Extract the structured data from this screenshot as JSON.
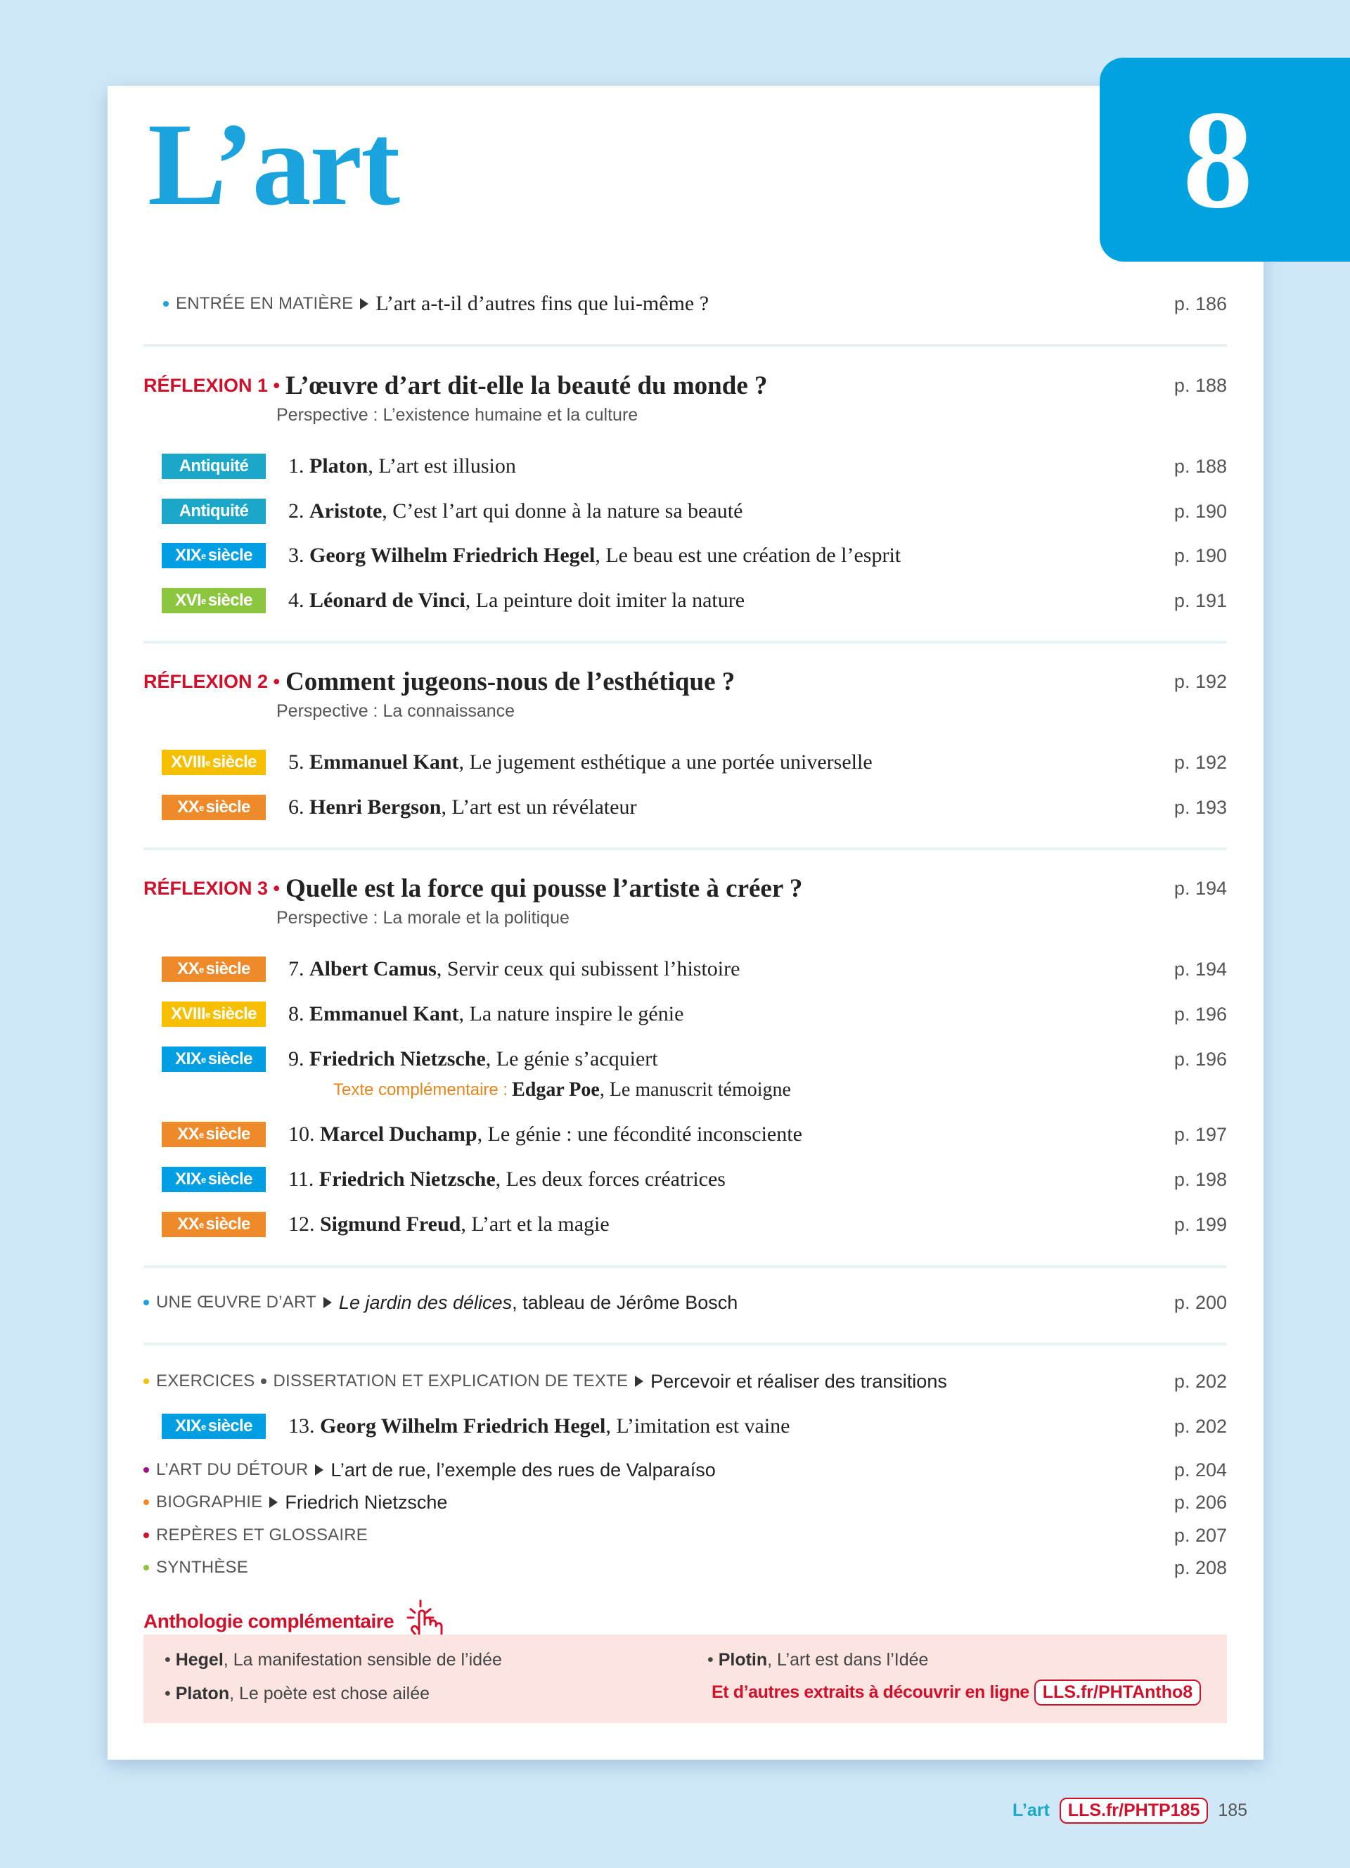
{
  "header": {
    "title": "L’art",
    "chapter_number": "8"
  },
  "entree": {
    "label": "ENTRÉE EN MATIÈRE",
    "text": "L’art a-t-il d’autres fins que lui-même ?",
    "page": "p. 186",
    "bullet_color": "#1aa3dc"
  },
  "period_colors": {
    "antiquite": "#1ba7c9",
    "xix": "#009fe3",
    "xvi": "#8cc63f",
    "xviii": "#f6bf00",
    "xx": "#ef8a2a"
  },
  "reflexions": [
    {
      "label": "RÉFLEXION 1 •",
      "title": "L’œuvre d’art dit-elle la beauté du monde ?",
      "perspective": "Perspective : L’existence humaine et la culture",
      "page": "p. 188",
      "texts": [
        {
          "period": "Antiquité",
          "suffix": "",
          "word": "",
          "color": "antiquite",
          "number": "1.",
          "author": "Platon",
          "title": "L’art est illusion",
          "page": "p. 188"
        },
        {
          "period": "Antiquité",
          "suffix": "",
          "word": "",
          "color": "antiquite",
          "number": "2.",
          "author": "Aristote",
          "title": "C’est l’art qui donne à la nature sa beauté",
          "page": "p. 190"
        },
        {
          "period": "XIX",
          "suffix": "e",
          "word": "siècle",
          "color": "xix",
          "number": "3.",
          "author": "Georg Wilhelm Friedrich Hegel",
          "title": "Le beau est une création de l’esprit",
          "page": "p. 190"
        },
        {
          "period": "XVI",
          "suffix": "e",
          "word": "siècle",
          "color": "xvi",
          "number": "4.",
          "author": "Léonard de Vinci",
          "title": "La peinture doit imiter la nature",
          "page": "p. 191"
        }
      ]
    },
    {
      "label": "RÉFLEXION 2 •",
      "title": "Comment jugeons-nous de l’esthétique ?",
      "perspective": "Perspective : La connaissance",
      "page": "p. 192",
      "texts": [
        {
          "period": "XVIII",
          "suffix": "e",
          "word": "siècle",
          "color": "xviii",
          "number": "5.",
          "author": "Emmanuel Kant",
          "title": "Le jugement esthétique a une portée universelle",
          "page": "p. 192"
        },
        {
          "period": "XX",
          "suffix": "e",
          "word": "siècle",
          "color": "xx",
          "number": "6.",
          "author": "Henri Bergson",
          "title": "L’art est un révélateur",
          "page": "p. 193"
        }
      ]
    },
    {
      "label": "RÉFLEXION 3 •",
      "title": "Quelle est la force qui pousse l’artiste à créer ?",
      "perspective": "Perspective : La morale et la politique",
      "page": "p. 194",
      "texts": [
        {
          "period": "XX",
          "suffix": "e",
          "word": "siècle",
          "color": "xx",
          "number": "7.",
          "author": "Albert Camus",
          "title": "Servir ceux qui subissent l’histoire",
          "page": "p. 194"
        },
        {
          "period": "XVIII",
          "suffix": "e",
          "word": "siècle",
          "color": "xviii",
          "number": "8.",
          "author": "Emmanuel Kant",
          "title": "La nature inspire le génie",
          "page": "p. 196"
        },
        {
          "period": "XIX",
          "suffix": "e",
          "word": "siècle",
          "color": "xix",
          "number": "9.",
          "author": "Friedrich Nietzsche",
          "title": "Le génie s’acquiert",
          "page": "p. 196",
          "complement": {
            "label": "Texte complémentaire :",
            "author": "Edgar Poe",
            "title": "Le manuscrit témoigne"
          }
        },
        {
          "period": "XX",
          "suffix": "e",
          "word": "siècle",
          "color": "xx",
          "number": "10.",
          "author": "Marcel Duchamp",
          "title": "Le génie : une fécondité inconsciente",
          "page": "p. 197"
        },
        {
          "period": "XIX",
          "suffix": "e",
          "word": "siècle",
          "color": "xix",
          "number": "11.",
          "author": "Friedrich Nietzsche",
          "title": "Les deux forces créatrices",
          "page": "p. 198"
        },
        {
          "period": "XX",
          "suffix": "e",
          "word": "siècle",
          "color": "xx",
          "number": "12.",
          "author": "Sigmund Freud",
          "title": "L’art et la magie",
          "page": "p. 199"
        }
      ]
    }
  ],
  "oeuvre": {
    "label": "UNE ŒUVRE D’ART",
    "title_italic": "Le jardin des délices",
    "rest": ", tableau de Jérôme Bosch",
    "page": "p. 200",
    "bullet_color": "#1aa3dc"
  },
  "exercices": {
    "label": "EXERCICES",
    "label2": "DISSERTATION ET EXPLICATION DE TEXTE",
    "text": "Percevoir et réaliser des transitions",
    "page": "p. 202",
    "bullet_color": "#f6bf00",
    "text_item": {
      "period": "XIX",
      "suffix": "e",
      "word": "siècle",
      "color": "xix",
      "number": "13.",
      "author": "Georg Wilhelm Friedrich Hegel",
      "title": "L’imitation est vaine",
      "page": "p. 202"
    }
  },
  "extras": [
    {
      "label": "L’ART DU DÉTOUR",
      "text": "L’art de rue, l’exemple des rues de Valparaíso",
      "page": "p. 204",
      "bullet_color": "#a0127f"
    },
    {
      "label": "BIOGRAPHIE",
      "text": "Friedrich Nietzsche",
      "page": "p. 206",
      "bullet_color": "#ef8a2a"
    },
    {
      "label": "REPÈRES ET GLOSSAIRE",
      "text": "",
      "page": "p. 207",
      "bullet_color": "#d0112b"
    },
    {
      "label": "SYNTHÈSE",
      "text": "",
      "page": "p. 208",
      "bullet_color": "#8cc63f"
    }
  ],
  "anthology": {
    "title": "Anthologie complémentaire",
    "icon": "hand-pointer-click-icon",
    "items": [
      {
        "author": "Hegel",
        "title": ", La manifestation sensible de l’idée"
      },
      {
        "author": "Platon",
        "title": ", Le poète est chose ailée"
      },
      {
        "author": "Plotin",
        "title": ", L’art est dans l’Idée"
      }
    ],
    "more": "Et d’autres extraits à découvrir en ligne",
    "link": "LLS.fr/PHTAntho8"
  },
  "footer": {
    "chapter": "L’art",
    "link": "LLS.fr/PHTP185",
    "page_number": "185"
  }
}
